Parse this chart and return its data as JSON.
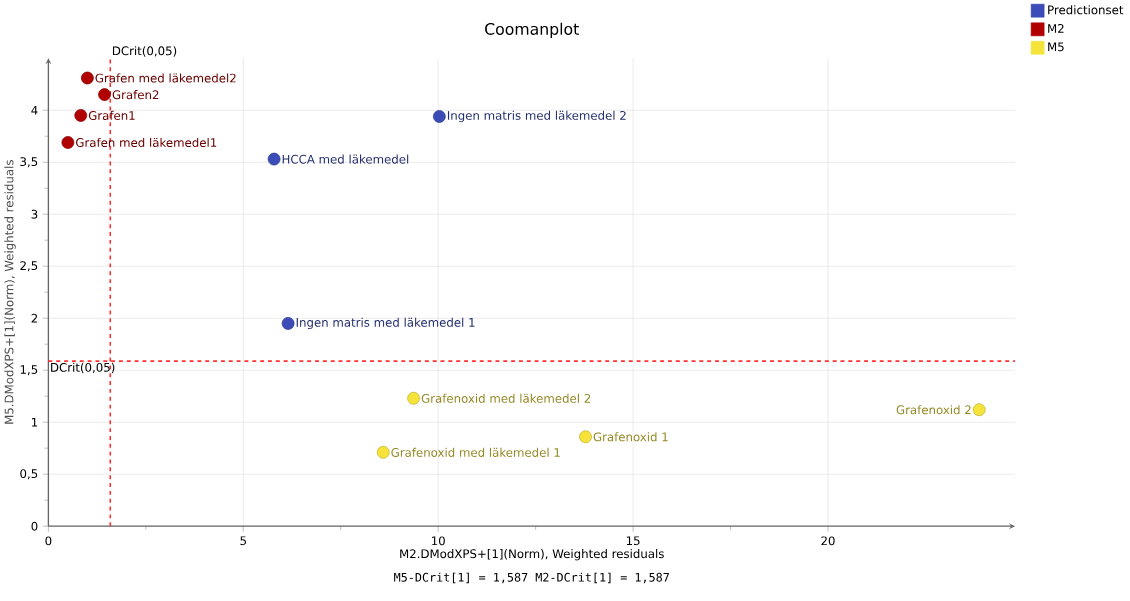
{
  "chart_data": {
    "type": "scatter",
    "title": "Coomanplot",
    "xlabel": "M2.DModXPS+[1](Norm), Weighted residuals",
    "ylabel": "M5.DModXPS+[1](Norm), Weighted residuals",
    "series": [
      {
        "name": "Predictionset",
        "color": "#3b4cb8",
        "x": [
          10.03,
          5.79,
          6.15
        ],
        "values": [
          3.94,
          3.53,
          1.95
        ]
      },
      {
        "name": "M2",
        "color": "#b00000",
        "x": [
          1.0,
          1.44,
          0.83,
          0.5
        ],
        "values": [
          4.31,
          4.15,
          3.95,
          3.69
        ]
      },
      {
        "name": "M5",
        "color": "#f5e33a",
        "x": [
          9.37,
          8.59,
          13.78,
          23.88
        ],
        "values": [
          1.23,
          0.71,
          0.86,
          1.12
        ]
      }
    ],
    "annotations": [
      {
        "text": "Ingen matris med läkemedel 2",
        "x": 10.03,
        "y": 3.94
      },
      {
        "text": "HCCA med läkemedel",
        "x": 5.79,
        "y": 3.53
      },
      {
        "text": "Ingen matris med läkemedel 1",
        "x": 6.15,
        "y": 1.95
      },
      {
        "text": "Grafen med läkemedel2",
        "x": 1.0,
        "y": 4.31
      },
      {
        "text": "Grafen2",
        "x": 1.44,
        "y": 4.15
      },
      {
        "text": "Grafen1",
        "x": 0.83,
        "y": 3.95
      },
      {
        "text": "Grafen med läkemedel1",
        "x": 0.5,
        "y": 3.69
      },
      {
        "text": "Grafenoxid med läkemedel 2",
        "x": 9.37,
        "y": 1.23
      },
      {
        "text": "Grafenoxid med läkemedel 1",
        "x": 8.59,
        "y": 0.71
      },
      {
        "text": "Grafenoxid 1",
        "x": 13.78,
        "y": 0.86
      },
      {
        "text": "Grafenoxid 2",
        "x": 23.88,
        "y": 1.12
      },
      "M5-DCrit[1] = 1,587 M2-DCrit[1] = 1,587"
    ],
    "ref_lines": [
      {
        "axis": "x",
        "value": 1.587,
        "label": "DCrit(0,05)",
        "color": "#ff3030",
        "line_style": "dashed"
      },
      {
        "axis": "y",
        "value": 1.587,
        "label": "DCrit(0,05)",
        "color": "#ff3030",
        "line_style": "dashed"
      }
    ],
    "xlim": [
      0,
      24.8
    ],
    "ylim": [
      0,
      4.5
    ],
    "xticks": [
      0,
      5,
      10,
      15,
      20
    ],
    "yticks": [
      0,
      {
        "value": 0.5,
        "label": "0,5"
      },
      1,
      {
        "value": 1.5,
        "label": "1,5"
      },
      2,
      {
        "value": 2.5,
        "label": "2,5"
      },
      3,
      {
        "value": 3.5,
        "label": "3,5"
      },
      4
    ],
    "grid": true,
    "legend": "top right"
  }
}
